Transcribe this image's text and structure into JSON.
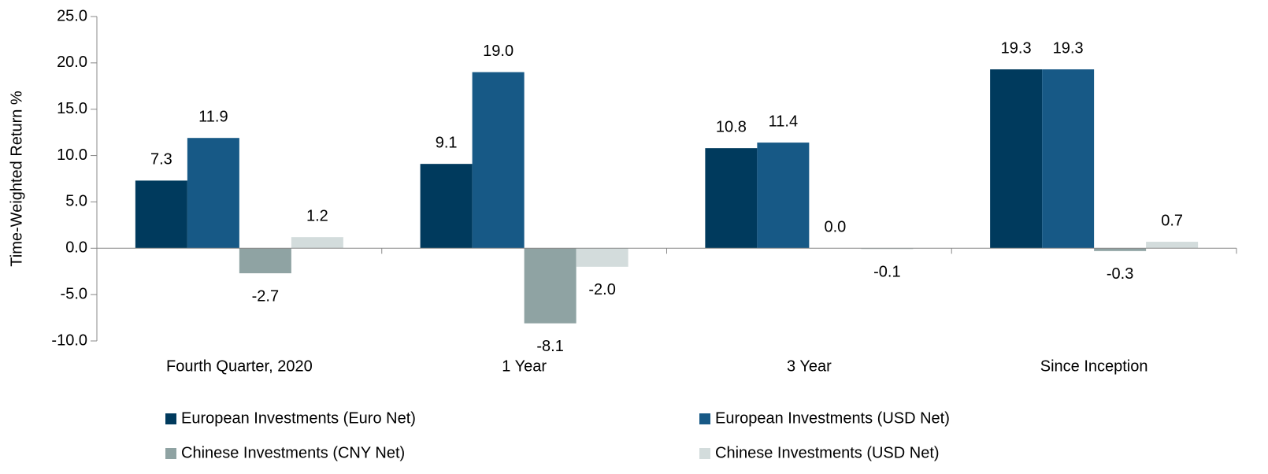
{
  "chart_data": {
    "type": "bar",
    "y_label": "Time-Weighted Return %",
    "categories": [
      "Fourth Quarter, 2020",
      "1 Year",
      "3 Year",
      "Since Inception"
    ],
    "series": [
      {
        "name": "European Investments (Euro Net)",
        "color": "#003a5d",
        "values": [
          7.3,
          9.1,
          10.8,
          19.3
        ],
        "value_labels": [
          "7.3",
          "9.1",
          "10.8",
          "19.3"
        ]
      },
      {
        "name": "European Investments (USD Net)",
        "color": "#175986",
        "values": [
          11.9,
          19.0,
          11.4,
          19.3
        ],
        "value_labels": [
          "11.9",
          "19.0",
          "11.4",
          "19.3"
        ]
      },
      {
        "name": "Chinese Investments (CNY Net)",
        "color": "#8fa3a3",
        "values": [
          -2.7,
          -8.1,
          0.0,
          -0.3
        ],
        "value_labels": [
          "-2.7",
          "-8.1",
          "0.0",
          "-0.3"
        ]
      },
      {
        "name": "Chinese Investments (USD Net)",
        "color": "#d3dcdc",
        "values": [
          1.2,
          -2.0,
          -0.1,
          0.7
        ],
        "value_labels": [
          "1.2",
          "-2.0",
          "-0.1",
          "0.7"
        ]
      }
    ],
    "ylim": [
      -10,
      25
    ],
    "yticks": [
      {
        "value": -10,
        "label": "-10.0"
      },
      {
        "value": -5,
        "label": "-5.0"
      },
      {
        "value": 0,
        "label": "0.0"
      },
      {
        "value": 5,
        "label": "5.0"
      },
      {
        "value": 10,
        "label": "10.0"
      },
      {
        "value": 15,
        "label": "15.0"
      },
      {
        "value": 20,
        "label": "20.0"
      },
      {
        "value": 25,
        "label": "25.0"
      }
    ],
    "grid": false,
    "legend": "bottom"
  }
}
